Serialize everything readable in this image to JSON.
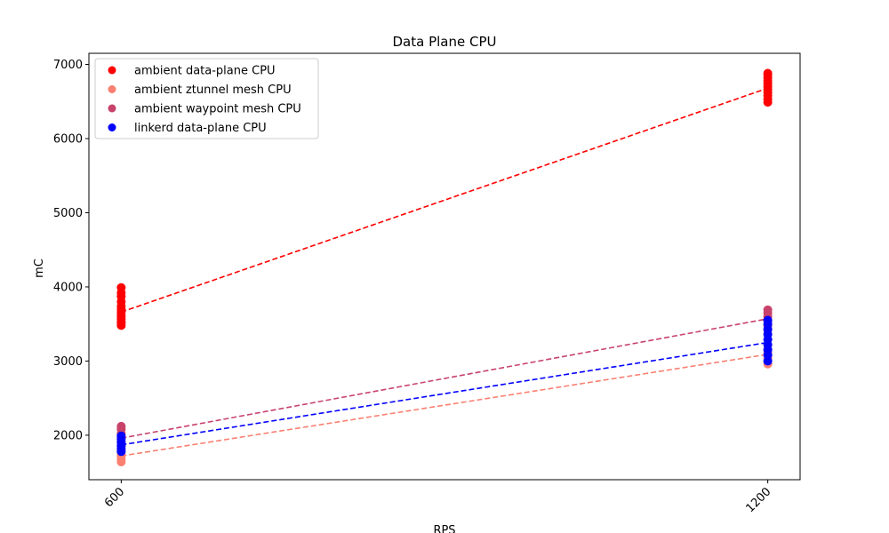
{
  "chart_data": {
    "type": "scatter",
    "title": "Data Plane CPU",
    "xlabel": "RPS",
    "ylabel": "mC",
    "x_ticks": [
      "600",
      "1200"
    ],
    "x_values": [
      600,
      1200
    ],
    "xlim": [
      570,
      1230
    ],
    "ylim": [
      1400,
      7150
    ],
    "y_ticks": [
      2000,
      3000,
      4000,
      5000,
      6000,
      7000
    ],
    "grid": false,
    "legend_position": "top-left",
    "series": [
      {
        "name": "ambient data-plane CPU",
        "color": "#ff0000",
        "trend": [
          [
            600,
            3660
          ],
          [
            1200,
            6680
          ]
        ],
        "points": [
          [
            600,
            3480
          ],
          [
            600,
            3510
          ],
          [
            600,
            3530
          ],
          [
            600,
            3560
          ],
          [
            600,
            3590
          ],
          [
            600,
            3620
          ],
          [
            600,
            3660
          ],
          [
            600,
            3700
          ],
          [
            600,
            3740
          ],
          [
            600,
            3800
          ],
          [
            600,
            3870
          ],
          [
            600,
            3920
          ],
          [
            600,
            3990
          ],
          [
            1200,
            6490
          ],
          [
            1200,
            6530
          ],
          [
            1200,
            6580
          ],
          [
            1200,
            6620
          ],
          [
            1200,
            6660
          ],
          [
            1200,
            6700
          ],
          [
            1200,
            6740
          ],
          [
            1200,
            6780
          ],
          [
            1200,
            6820
          ],
          [
            1200,
            6860
          ],
          [
            1200,
            6880
          ]
        ]
      },
      {
        "name": "ambient ztunnel mesh CPU",
        "color": "#fa8072",
        "trend": [
          [
            600,
            1720
          ],
          [
            1200,
            3090
          ]
        ],
        "points": [
          [
            600,
            1640
          ],
          [
            600,
            1680
          ],
          [
            600,
            1720
          ],
          [
            600,
            1760
          ],
          [
            600,
            1800
          ],
          [
            600,
            1850
          ],
          [
            1200,
            2960
          ],
          [
            1200,
            3000
          ],
          [
            1200,
            3040
          ],
          [
            1200,
            3080
          ],
          [
            1200,
            3120
          ],
          [
            1200,
            3160
          ]
        ]
      },
      {
        "name": "ambient waypoint mesh CPU",
        "color": "#c8436b",
        "trend": [
          [
            600,
            1960
          ],
          [
            1200,
            3570
          ]
        ],
        "points": [
          [
            600,
            1860
          ],
          [
            600,
            1920
          ],
          [
            600,
            1970
          ],
          [
            600,
            2020
          ],
          [
            600,
            2080
          ],
          [
            600,
            2120
          ],
          [
            1200,
            3420
          ],
          [
            1200,
            3480
          ],
          [
            1200,
            3540
          ],
          [
            1200,
            3600
          ],
          [
            1200,
            3650
          ],
          [
            1200,
            3690
          ]
        ]
      },
      {
        "name": "linkerd data-plane CPU",
        "color": "#0000ff",
        "trend": [
          [
            600,
            1870
          ],
          [
            1200,
            3250
          ]
        ],
        "points": [
          [
            600,
            1780
          ],
          [
            600,
            1820
          ],
          [
            600,
            1860
          ],
          [
            600,
            1900
          ],
          [
            600,
            1950
          ],
          [
            600,
            1990
          ],
          [
            1200,
            3000
          ],
          [
            1200,
            3080
          ],
          [
            1200,
            3150
          ],
          [
            1200,
            3220
          ],
          [
            1200,
            3290
          ],
          [
            1200,
            3360
          ],
          [
            1200,
            3430
          ],
          [
            1200,
            3500
          ],
          [
            1200,
            3550
          ]
        ]
      }
    ]
  }
}
